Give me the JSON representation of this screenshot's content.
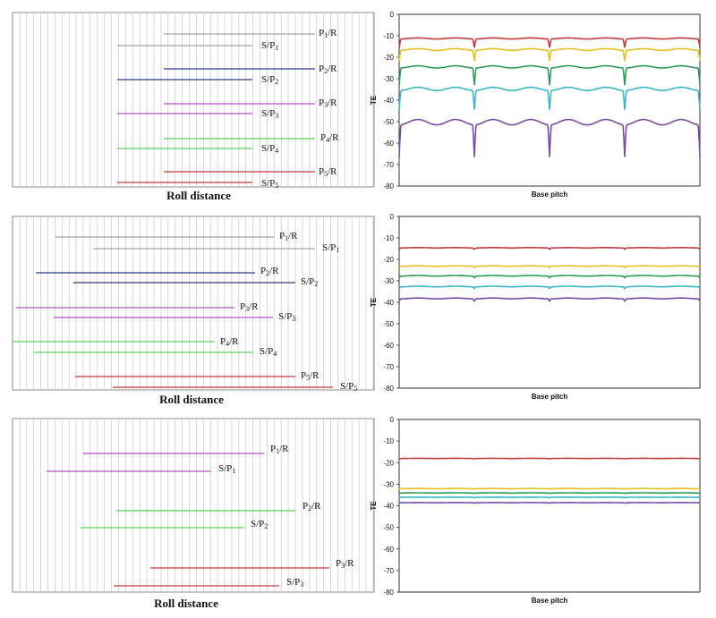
{
  "roll_panels": [
    {
      "title": "Roll distance",
      "lines": [
        {
          "label": "P",
          "sub": "1",
          "suffix": "/R",
          "color": "#a0a0a0"
        },
        {
          "label": "S/P",
          "sub": "1",
          "suffix": "",
          "color": "#a0a0a0"
        },
        {
          "label": "P",
          "sub": "2",
          "suffix": "/R",
          "color": "#2c3a7a"
        },
        {
          "label": "S/P",
          "sub": "2",
          "suffix": "",
          "color": "#2c3a7a"
        },
        {
          "label": "P",
          "sub": "3",
          "suffix": "/R",
          "color": "#b84fc0"
        },
        {
          "label": "S/P",
          "sub": "3",
          "suffix": "",
          "color": "#b84fc0"
        },
        {
          "label": "P",
          "sub": "4",
          "suffix": "/R",
          "color": "#5ccf5c"
        },
        {
          "label": "S/P",
          "sub": "4",
          "suffix": "",
          "color": "#5ccf5c"
        },
        {
          "label": "P",
          "sub": "5",
          "suffix": "/R",
          "color": "#c0393b"
        },
        {
          "label": "S/P",
          "sub": "5",
          "suffix": "",
          "color": "#c0393b"
        }
      ]
    },
    {
      "title": "Roll distance",
      "lines": [
        {
          "label": "P",
          "sub": "1",
          "suffix": "/R",
          "color": "#a0a0a0"
        },
        {
          "label": "S/P",
          "sub": "1",
          "suffix": "",
          "color": "#a0a0a0"
        },
        {
          "label": "P",
          "sub": "2",
          "suffix": "/R",
          "color": "#2c3a7a"
        },
        {
          "label": "S/P",
          "sub": "2",
          "suffix": "",
          "color": "#2c3a7a"
        },
        {
          "label": "P",
          "sub": "3",
          "suffix": "/R",
          "color": "#b84fc0"
        },
        {
          "label": "S/P",
          "sub": "3",
          "suffix": "",
          "color": "#b84fc0"
        },
        {
          "label": "P",
          "sub": "4",
          "suffix": "/R",
          "color": "#5ccf5c"
        },
        {
          "label": "S/P",
          "sub": "4",
          "suffix": "",
          "color": "#5ccf5c"
        },
        {
          "label": "P",
          "sub": "5",
          "suffix": "/R",
          "color": "#c0393b"
        },
        {
          "label": "S/P",
          "sub": "5",
          "suffix": "",
          "color": "#c0393b"
        }
      ]
    },
    {
      "title": "Roll distance",
      "lines": [
        {
          "label": "P",
          "sub": "1",
          "suffix": "/R",
          "color": "#b84fc0"
        },
        {
          "label": "S/P",
          "sub": "1",
          "suffix": "",
          "color": "#b84fc0"
        },
        {
          "label": "P",
          "sub": "2",
          "suffix": "/R",
          "color": "#5ccf5c"
        },
        {
          "label": "S/P",
          "sub": "2",
          "suffix": "",
          "color": "#5ccf5c"
        },
        {
          "label": "P",
          "sub": "3",
          "suffix": "/R",
          "color": "#c0393b"
        },
        {
          "label": "S/P",
          "sub": "3",
          "suffix": "",
          "color": "#c0393b"
        }
      ]
    }
  ],
  "chart_data": [
    {
      "type": "line",
      "xlabel": "Base pitch",
      "ylabel": "TE",
      "ylim": [
        -80,
        0
      ],
      "yticks": [
        0,
        -10,
        -20,
        -30,
        -40,
        -50,
        -60,
        -70,
        -80
      ],
      "x_range": [
        0,
        4
      ],
      "series": [
        {
          "color": "#c0393b",
          "baseline": -11,
          "dip_depth": 4,
          "ripple": 0.5
        },
        {
          "color": "#e8c020",
          "baseline": -16,
          "dip_depth": 5,
          "ripple": 0.8
        },
        {
          "color": "#2e9a5a",
          "baseline": -24,
          "dip_depth": 8,
          "ripple": 1.0
        },
        {
          "color": "#3ab5c8",
          "baseline": -34,
          "dip_depth": 9,
          "ripple": 1.5
        },
        {
          "color": "#7a4aa0",
          "baseline": -49,
          "dip_depth": 15,
          "ripple": 2.5
        }
      ]
    },
    {
      "type": "line",
      "xlabel": "Base pitch",
      "ylabel": "TE",
      "ylim": [
        -80,
        0
      ],
      "yticks": [
        0,
        -10,
        -20,
        -30,
        -40,
        -50,
        -60,
        -70,
        -80
      ],
      "x_range": [
        0,
        4
      ],
      "series": [
        {
          "color": "#c0393b",
          "baseline": -14.5,
          "dip_depth": 0.6,
          "ripple": 0.2
        },
        {
          "color": "#e8c020",
          "baseline": -23,
          "dip_depth": 0.6,
          "ripple": 0.2
        },
        {
          "color": "#2e9a5a",
          "baseline": -27.5,
          "dip_depth": 0.8,
          "ripple": 0.3
        },
        {
          "color": "#3ab5c8",
          "baseline": -32.5,
          "dip_depth": 0.8,
          "ripple": 0.3
        },
        {
          "color": "#7a4aa0",
          "baseline": -38,
          "dip_depth": 1.0,
          "ripple": 0.4
        }
      ]
    },
    {
      "type": "line",
      "xlabel": "Base pitch",
      "ylabel": "TE",
      "ylim": [
        -80,
        0
      ],
      "yticks": [
        0,
        -10,
        -20,
        -30,
        -40,
        -50,
        -60,
        -70,
        -80
      ],
      "x_range": [
        0,
        4
      ],
      "series": [
        {
          "color": "#c0393b",
          "baseline": -18,
          "dip_depth": 0.2,
          "ripple": 0.1
        },
        {
          "color": "#e8c020",
          "baseline": -32,
          "dip_depth": 0.2,
          "ripple": 0.1
        },
        {
          "color": "#2e9a5a",
          "baseline": -34,
          "dip_depth": 0.2,
          "ripple": 0.1
        },
        {
          "color": "#3ab5c8",
          "baseline": -36,
          "dip_depth": 0.2,
          "ripple": 0.1
        },
        {
          "color": "#7a4aa0",
          "baseline": -38.5,
          "dip_depth": 0.2,
          "ripple": 0.1
        }
      ]
    }
  ]
}
